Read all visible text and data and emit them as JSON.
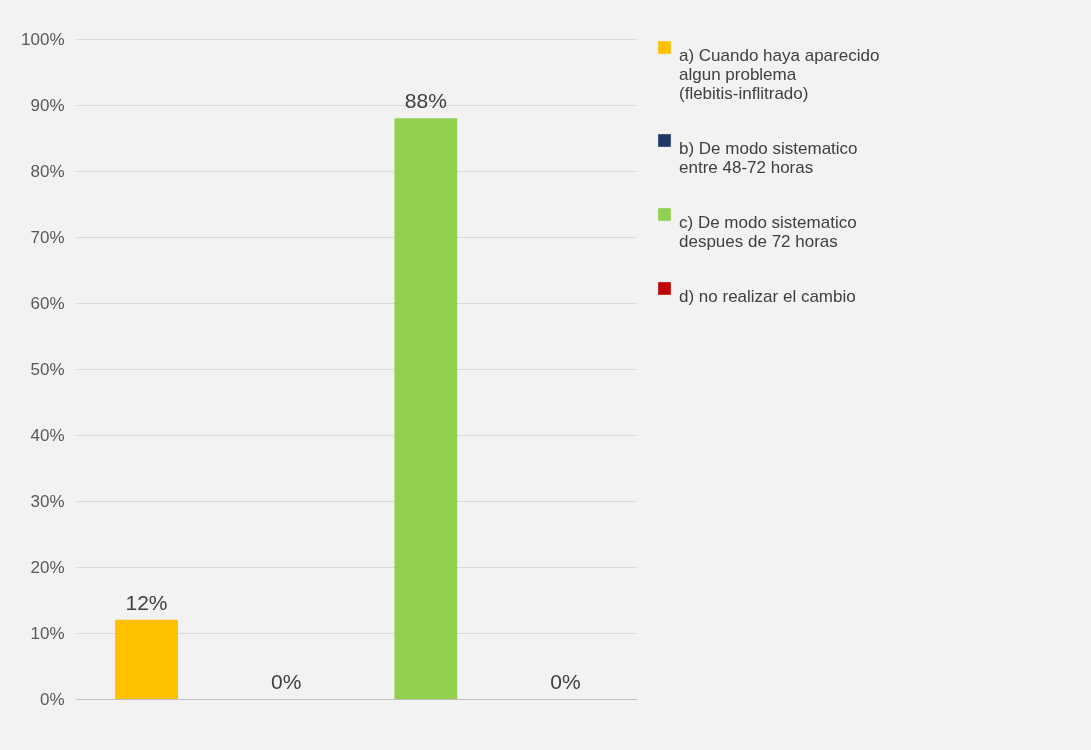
{
  "chart_data": {
    "type": "bar",
    "categories": [
      null,
      null,
      null,
      null
    ],
    "series": [
      {
        "name": "a) Cuando haya aparecido algun problema (flebitis-inflitrado)",
        "color": "#ffc000",
        "values": [
          12,
          null,
          null,
          null
        ],
        "value_labels": [
          "12%",
          null,
          null,
          null
        ]
      },
      {
        "name": "b) De modo sistematico entre 48-72 horas",
        "color": "#1f3864",
        "values": [
          null,
          0,
          null,
          null
        ],
        "value_labels": [
          null,
          "0%",
          null,
          null
        ]
      },
      {
        "name": "c) De modo sistematico despues de 72 horas",
        "color": "#92d050",
        "values": [
          null,
          null,
          88,
          null
        ],
        "value_labels": [
          null,
          null,
          "88%",
          null
        ]
      },
      {
        "name": "d) no realizar el cambio",
        "color": "#c00000",
        "values": [
          null,
          null,
          null,
          0
        ],
        "value_labels": [
          null,
          null,
          null,
          "0%"
        ]
      }
    ],
    "ylim": [
      0,
      100
    ],
    "yticks": [
      {
        "value": 0,
        "label": "0%"
      },
      {
        "value": 10,
        "label": "10%"
      },
      {
        "value": 20,
        "label": "20%"
      },
      {
        "value": 30,
        "label": "30%"
      },
      {
        "value": 40,
        "label": "40%"
      },
      {
        "value": 50,
        "label": "50%"
      },
      {
        "value": 60,
        "label": "60%"
      },
      {
        "value": 70,
        "label": "70%"
      },
      {
        "value": 80,
        "label": "80%"
      },
      {
        "value": 90,
        "label": "90%"
      },
      {
        "value": 100,
        "label": "100%"
      }
    ],
    "grid": "y",
    "legend": "right"
  }
}
